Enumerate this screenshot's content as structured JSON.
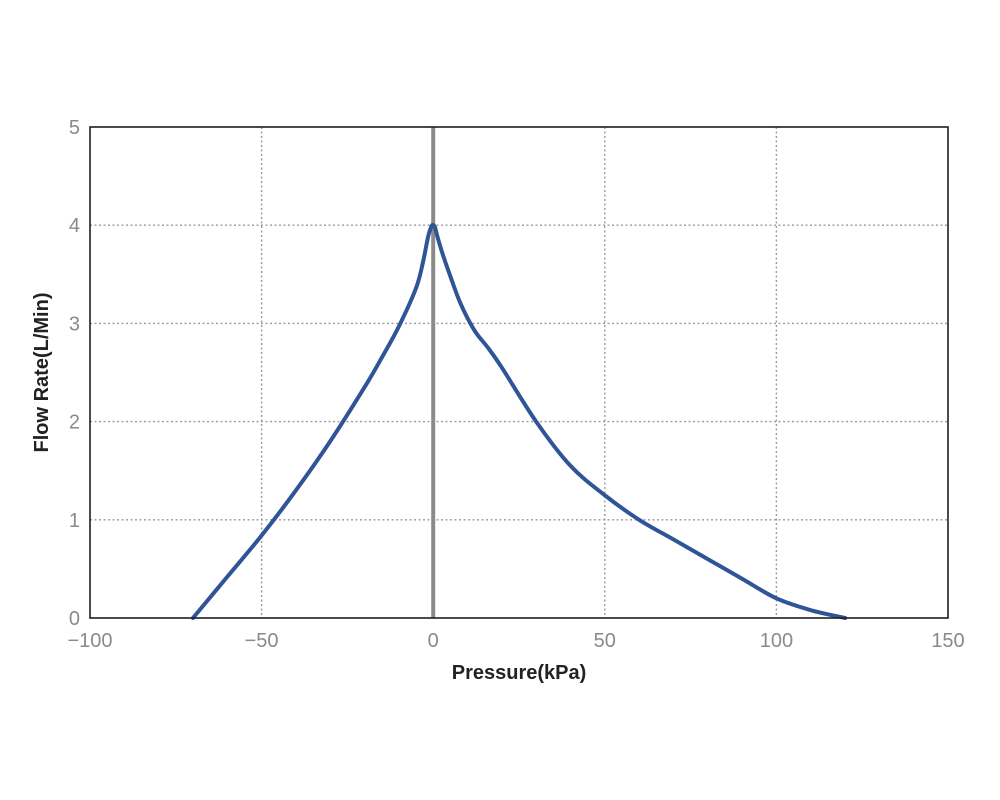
{
  "chart_data": {
    "type": "line",
    "title": "",
    "xlabel": "Pressure(kPa)",
    "ylabel": "Flow Rate(L/Min)",
    "xlim": [
      -100,
      150
    ],
    "ylim": [
      0,
      5
    ],
    "x_ticks": [
      -100,
      -50,
      0,
      50,
      100,
      150
    ],
    "y_ticks": [
      0,
      1,
      2,
      3,
      4,
      5
    ],
    "x_tick_labels": [
      "−100",
      "−50",
      "0",
      "50",
      "100",
      "150"
    ],
    "y_tick_labels": [
      "0",
      "1",
      "2",
      "3",
      "4",
      "5"
    ],
    "grid": true,
    "zero_line_x": 0,
    "series": [
      {
        "color": "#2f5597",
        "x": [
          -70,
          -60,
          -50,
          -40,
          -30,
          -20,
          -15,
          -10,
          -5,
          -3,
          -1.5,
          -0.5,
          0,
          0.5,
          1.5,
          3,
          5,
          8,
          12,
          16,
          20,
          30,
          40,
          50,
          60,
          70,
          80,
          90,
          100,
          110,
          120
        ],
        "y": [
          0,
          0.42,
          0.84,
          1.3,
          1.8,
          2.35,
          2.65,
          2.97,
          3.36,
          3.62,
          3.88,
          3.99,
          4.0,
          3.98,
          3.85,
          3.68,
          3.48,
          3.2,
          2.93,
          2.75,
          2.55,
          2.0,
          1.55,
          1.25,
          1.0,
          0.8,
          0.6,
          0.4,
          0.2,
          0.08,
          0
        ]
      }
    ]
  },
  "colors": {
    "series": "#2f5597",
    "zero_line": "#8a8a8a",
    "grid": "#9a9a9a",
    "frame": "#1e1e1e",
    "tick_text": "#8a8a8a",
    "axis_title": "#222222"
  }
}
